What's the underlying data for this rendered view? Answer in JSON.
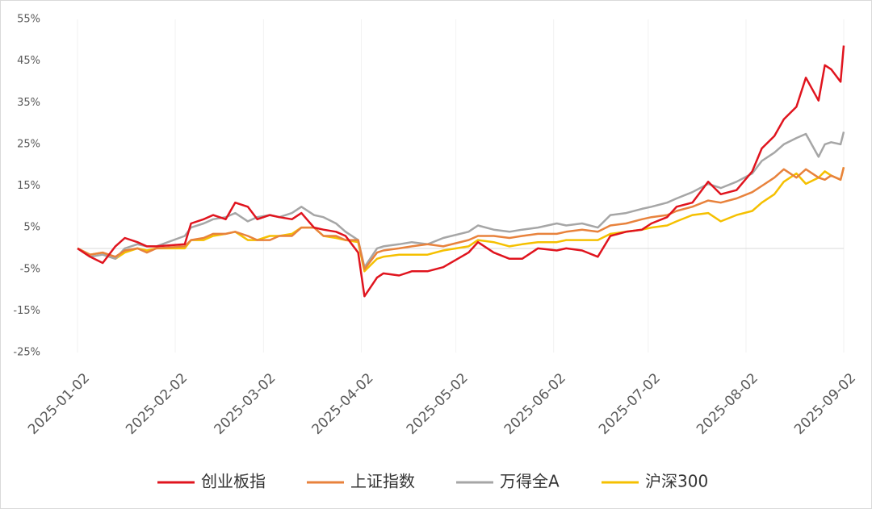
{
  "chart_data": {
    "type": "line",
    "x": [
      "2025-01-02",
      "2025-01-06",
      "2025-01-10",
      "2025-01-14",
      "2025-01-17",
      "2025-01-21",
      "2025-01-24",
      "2025-01-27",
      "2025-02-05",
      "2025-02-07",
      "2025-02-11",
      "2025-02-14",
      "2025-02-18",
      "2025-02-21",
      "2025-02-25",
      "2025-02-28",
      "2025-03-04",
      "2025-03-07",
      "2025-03-11",
      "2025-03-14",
      "2025-03-18",
      "2025-03-21",
      "2025-03-25",
      "2025-03-28",
      "2025-04-01",
      "2025-04-03",
      "2025-04-07",
      "2025-04-09",
      "2025-04-14",
      "2025-04-18",
      "2025-04-23",
      "2025-04-28",
      "2025-05-06",
      "2025-05-09",
      "2025-05-14",
      "2025-05-19",
      "2025-05-23",
      "2025-05-28",
      "2025-06-03",
      "2025-06-06",
      "2025-06-11",
      "2025-06-16",
      "2025-06-20",
      "2025-06-25",
      "2025-06-30",
      "2025-07-03",
      "2025-07-08",
      "2025-07-11",
      "2025-07-16",
      "2025-07-21",
      "2025-07-25",
      "2025-07-30",
      "2025-08-04",
      "2025-08-07",
      "2025-08-11",
      "2025-08-14",
      "2025-08-18",
      "2025-08-21",
      "2025-08-25",
      "2025-08-27",
      "2025-08-29",
      "2025-09-01",
      "2025-09-02"
    ],
    "series": [
      {
        "name": "创业板指",
        "color": "#e0141e",
        "values": [
          0,
          -2,
          -3.5,
          0.5,
          2.5,
          1.5,
          0.5,
          0.5,
          1,
          6,
          7,
          8,
          7,
          11,
          10,
          7,
          8,
          7.5,
          7,
          8.5,
          5,
          4.5,
          4,
          3,
          -1,
          -11.5,
          -7,
          -6,
          -6.5,
          -5.5,
          -5.5,
          -4.5,
          -1,
          1.5,
          -1,
          -2.5,
          -2.5,
          0,
          -0.5,
          0,
          -0.5,
          -2,
          3,
          4,
          4.5,
          6,
          7.5,
          10,
          11,
          16,
          13,
          14,
          18.5,
          24,
          27,
          31,
          34,
          41,
          35.5,
          44,
          43,
          40,
          48.7
        ]
      },
      {
        "name": "上证指数",
        "color": "#e8823c",
        "values": [
          0,
          -1.5,
          -1,
          -2,
          -0.5,
          0,
          -1,
          0,
          0.5,
          2,
          2.5,
          3.5,
          3.5,
          4,
          3,
          2,
          2,
          3,
          3,
          5,
          5,
          3,
          3,
          2,
          2,
          -5,
          -1,
          -0.5,
          0,
          0.5,
          1,
          0.5,
          2,
          3,
          3,
          2.5,
          3,
          3.5,
          3.5,
          4,
          4.5,
          4,
          5.5,
          6,
          7,
          7.5,
          8,
          9,
          10,
          11.5,
          11,
          12,
          13.5,
          15,
          17,
          19,
          17,
          19,
          17,
          16.5,
          17.5,
          16.5,
          19.5
        ]
      },
      {
        "name": "万得全A",
        "color": "#a6a6a6",
        "values": [
          0,
          -2,
          -1.5,
          -2.5,
          0,
          1,
          0.5,
          0.5,
          3,
          5,
          6,
          7,
          7.5,
          8.5,
          6.5,
          7.5,
          8,
          7.5,
          8.5,
          10,
          8,
          7.5,
          6,
          4,
          2,
          -4.5,
          0,
          0.5,
          1,
          1.5,
          1,
          2.5,
          4,
          5.5,
          4.5,
          4,
          4.5,
          5,
          6,
          5.5,
          6,
          5,
          8,
          8.5,
          9.5,
          10,
          11,
          12,
          13.5,
          15.5,
          14.5,
          16,
          18,
          21,
          23,
          25,
          26.5,
          27.5,
          22,
          25,
          25.5,
          25,
          28
        ]
      },
      {
        "name": "沪深300",
        "color": "#f5c000",
        "values": [
          0,
          -1.5,
          -1,
          -2.5,
          -1,
          0,
          -0.5,
          0,
          0,
          2,
          2,
          3,
          3.5,
          4,
          2,
          2,
          3,
          3,
          3.5,
          5,
          5,
          3,
          2.5,
          2,
          1.5,
          -5.5,
          -2.5,
          -2,
          -1.5,
          -1.5,
          -1.5,
          -0.5,
          0.5,
          2,
          1.5,
          0.5,
          1,
          1.5,
          1.5,
          2,
          2,
          2,
          3.5,
          4,
          4.5,
          5,
          5.5,
          6.5,
          8,
          8.5,
          6.5,
          8,
          9,
          11,
          13,
          16,
          18,
          15.5,
          17,
          18.5,
          17.5,
          16.5,
          19.5
        ]
      }
    ],
    "xlim": [
      "2025-01-02",
      "2025-09-02"
    ],
    "xticks": [
      "2025-01-02",
      "2025-02-02",
      "2025-03-02",
      "2025-04-02",
      "2025-05-02",
      "2025-06-02",
      "2025-07-02",
      "2025-08-02",
      "2025-09-02"
    ],
    "ylim": [
      -25,
      55
    ],
    "yticks": [
      {
        "value": -25,
        "label": "-25%"
      },
      {
        "value": -15,
        "label": "-15%"
      },
      {
        "value": -5,
        "label": "-5%"
      },
      {
        "value": 5,
        "label": "5%"
      },
      {
        "value": 15,
        "label": "15%"
      },
      {
        "value": 25,
        "label": "25%"
      },
      {
        "value": 35,
        "label": "35%"
      },
      {
        "value": 45,
        "label": "45%"
      },
      {
        "value": 55,
        "label": "55%"
      }
    ],
    "grid": true,
    "legend": "bottom"
  }
}
